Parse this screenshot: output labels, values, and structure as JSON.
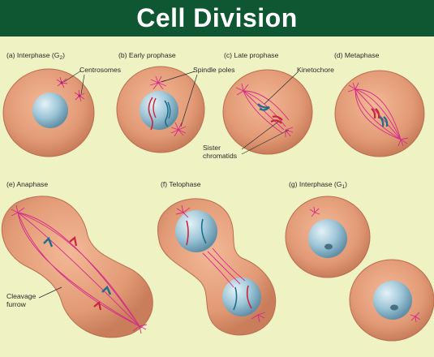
{
  "header": {
    "title": "Cell Division"
  },
  "panels": {
    "a": {
      "caption": "(a) Interphase (G",
      "sub": "2",
      "close": ")"
    },
    "b": {
      "caption": "(b) Early prophase"
    },
    "c": {
      "caption": "(c) Late prophase"
    },
    "d": {
      "caption": "(d) Metaphase"
    },
    "e": {
      "caption": "(e) Anaphase"
    },
    "f": {
      "caption": "(f) Telophase"
    },
    "g": {
      "caption": "(g) Interphase (G",
      "sub": "1",
      "close": ")"
    }
  },
  "labels": {
    "centrosomes": "Centrosomes",
    "spindle_poles": "Spindle poles",
    "kinetochore": "Kinetochore",
    "sister_1": "Sister",
    "sister_2": "chromatids",
    "cleavage_1": "Cleavage",
    "cleavage_2": "furrow"
  },
  "colors": {
    "banner": "#0f5732",
    "background": "#eff2c3",
    "cell_fill": "#e7a07a",
    "cell_edge": "#b96e4d",
    "nucleus": "#9cc4d6",
    "spindle": "#d42a8a",
    "chromosome_red": "#c9263b",
    "chromosome_teal": "#1c6f8c"
  }
}
